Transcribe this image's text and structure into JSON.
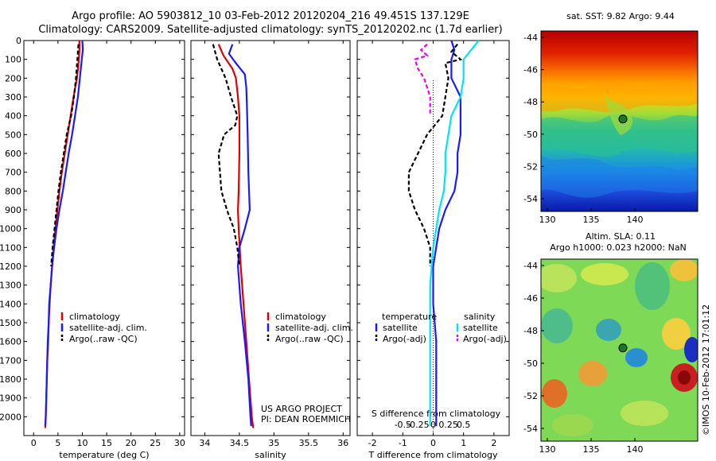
{
  "header": {
    "line1": "Argo profile: AO 5903812_10 03-Feb-2012 20120204_216 49.451S 137.129E",
    "line2": "Climatology: CARS2009. Satellite-adjusted climatology: synTS_20120202.nc (1.7d earlier)"
  },
  "colors": {
    "climatology": "#e00000",
    "satellite": "#1a1aff",
    "argo": "#000000",
    "sat_salinity": "#00e5ee",
    "argo_salinity": "#ee00ee",
    "map_marker": "#1b7a20"
  },
  "icons": {
    "map_marker": "circle-marker-icon"
  },
  "chart_data": [
    {
      "type": "line",
      "ylabel": "",
      "xlabel": "temperature (deg C)",
      "xlim": [
        -2,
        31
      ],
      "ylim": [
        2100,
        0
      ],
      "y_ticks": [
        0,
        100,
        200,
        300,
        400,
        500,
        600,
        700,
        800,
        900,
        1000,
        1100,
        1200,
        1300,
        1400,
        1500,
        1600,
        1700,
        1800,
        1900,
        2000
      ],
      "x_ticks": [
        0,
        5,
        10,
        15,
        20,
        25,
        30
      ],
      "legend": [
        "climatology",
        "satellite-adj. clim.",
        "Argo(..raw -QC)"
      ],
      "legend_position": "lower-center",
      "series": [
        {
          "name": "climatology",
          "color": "climatology",
          "dash": "",
          "points": [
            [
              9.4,
              0
            ],
            [
              9.4,
              50
            ],
            [
              9.3,
              100
            ],
            [
              8.9,
              200
            ],
            [
              8.2,
              300
            ],
            [
              7.6,
              400
            ],
            [
              7.0,
              500
            ],
            [
              6.4,
              600
            ],
            [
              5.8,
              700
            ],
            [
              5.3,
              800
            ],
            [
              4.9,
              900
            ],
            [
              4.5,
              1000
            ],
            [
              4.1,
              1100
            ],
            [
              3.8,
              1200
            ],
            [
              3.5,
              1300
            ],
            [
              3.3,
              1400
            ],
            [
              3.1,
              1500
            ],
            [
              3.0,
              1600
            ],
            [
              2.8,
              1700
            ],
            [
              2.7,
              1800
            ],
            [
              2.6,
              1900
            ],
            [
              2.5,
              2000
            ],
            [
              2.4,
              2060
            ]
          ]
        },
        {
          "name": "satellite-adj. clim.",
          "color": "satellite",
          "dash": "",
          "points": [
            [
              10.0,
              0
            ],
            [
              10.1,
              50
            ],
            [
              9.9,
              100
            ],
            [
              9.5,
              200
            ],
            [
              9.1,
              300
            ],
            [
              8.5,
              400
            ],
            [
              7.9,
              500
            ],
            [
              7.2,
              600
            ],
            [
              6.6,
              700
            ],
            [
              6.0,
              800
            ],
            [
              5.3,
              900
            ],
            [
              4.7,
              1000
            ],
            [
              4.2,
              1100
            ],
            [
              3.8,
              1200
            ],
            [
              3.5,
              1300
            ],
            [
              3.2,
              1400
            ],
            [
              3.1,
              1500
            ],
            [
              2.9,
              1600
            ],
            [
              2.8,
              1700
            ],
            [
              2.7,
              1800
            ],
            [
              2.6,
              1900
            ],
            [
              2.5,
              2000
            ],
            [
              2.4,
              2050
            ]
          ]
        },
        {
          "name": "Argo(..raw -QC)",
          "color": "argo",
          "dash": "5,3",
          "points": [
            [
              9.2,
              20
            ],
            [
              9.1,
              60
            ],
            [
              9.0,
              100
            ],
            [
              8.7,
              200
            ],
            [
              8.3,
              300
            ],
            [
              7.7,
              400
            ],
            [
              6.8,
              500
            ],
            [
              6.2,
              600
            ],
            [
              5.6,
              700
            ],
            [
              5.1,
              800
            ],
            [
              4.7,
              900
            ],
            [
              4.3,
              1000
            ],
            [
              3.9,
              1100
            ],
            [
              3.6,
              1200
            ]
          ]
        }
      ]
    },
    {
      "type": "line",
      "xlabel": "salinity",
      "xlim": [
        33.8,
        36.1
      ],
      "ylim": [
        2100,
        0
      ],
      "x_ticks": [
        34,
        34.5,
        35,
        35.5,
        36
      ],
      "x_tick_labels": [
        "34",
        "34.5",
        "35",
        "35.5",
        "36"
      ],
      "legend": [
        "climatology",
        "satellite-adj. clim.",
        "Argo(..raw -QC)"
      ],
      "legend_position": "lower-right",
      "annotation": [
        "US ARGO PROJECT",
        "PI: DEAN ROEMMICH"
      ],
      "series": [
        {
          "name": "climatology",
          "color": "climatology",
          "dash": "",
          "points": [
            [
              34.2,
              20
            ],
            [
              34.27,
              80
            ],
            [
              34.4,
              150
            ],
            [
              34.45,
              200
            ],
            [
              34.48,
              300
            ],
            [
              34.5,
              400
            ],
            [
              34.5,
              600
            ],
            [
              34.49,
              800
            ],
            [
              34.48,
              900
            ],
            [
              34.49,
              1000
            ],
            [
              34.52,
              1200
            ],
            [
              34.56,
              1400
            ],
            [
              34.6,
              1600
            ],
            [
              34.64,
              1800
            ],
            [
              34.68,
              2000
            ],
            [
              34.7,
              2060
            ]
          ]
        },
        {
          "name": "satellite-adj. clim.",
          "color": "satellite",
          "dash": "",
          "points": [
            [
              34.4,
              20
            ],
            [
              34.35,
              70
            ],
            [
              34.45,
              120
            ],
            [
              34.58,
              180
            ],
            [
              34.6,
              250
            ],
            [
              34.61,
              350
            ],
            [
              34.62,
              500
            ],
            [
              34.63,
              700
            ],
            [
              34.65,
              900
            ],
            [
              34.58,
              1000
            ],
            [
              34.5,
              1100
            ],
            [
              34.48,
              1200
            ],
            [
              34.52,
              1400
            ],
            [
              34.58,
              1600
            ],
            [
              34.63,
              1800
            ],
            [
              34.66,
              2000
            ],
            [
              34.67,
              2050
            ]
          ]
        },
        {
          "name": "Argo(..raw -QC)",
          "color": "argo",
          "dash": "5,3",
          "points": [
            [
              34.12,
              20
            ],
            [
              34.18,
              100
            ],
            [
              34.3,
              200
            ],
            [
              34.38,
              300
            ],
            [
              34.47,
              400
            ],
            [
              34.44,
              450
            ],
            [
              34.28,
              500
            ],
            [
              34.2,
              600
            ],
            [
              34.22,
              700
            ],
            [
              34.24,
              800
            ],
            [
              34.32,
              900
            ],
            [
              34.42,
              1000
            ],
            [
              34.47,
              1100
            ],
            [
              34.5,
              1200
            ]
          ]
        }
      ]
    },
    {
      "type": "line",
      "xlabel": "T difference from climatology",
      "top_axis_label": "S difference from climatology",
      "xlim": [
        -2.5,
        2.5
      ],
      "ylim": [
        2100,
        0
      ],
      "x_ticks": [
        -2,
        -1,
        0,
        1,
        2
      ],
      "x_tick_labels": [
        "-2",
        "-1",
        "0",
        "1",
        "2"
      ],
      "s_ticks": [
        -0.5,
        -0.25,
        0,
        0.25,
        0.5
      ],
      "s_tick_labels": [
        "-0.5",
        "-0.25",
        "0",
        "0.25",
        "0.5"
      ],
      "legend_temperature": [
        "temperature",
        "satellite",
        "Argo(-adj)"
      ],
      "legend_salinity": [
        "salinity",
        "satellite",
        "Argo(-adj)"
      ],
      "series": [
        {
          "name": "satellite",
          "color": "satellite",
          "dash": "",
          "points": [
            [
              0.6,
              0
            ],
            [
              0.7,
              50
            ],
            [
              0.6,
              100
            ],
            [
              0.6,
              200
            ],
            [
              0.9,
              300
            ],
            [
              0.9,
              400
            ],
            [
              0.9,
              500
            ],
            [
              0.8,
              600
            ],
            [
              0.8,
              700
            ],
            [
              0.7,
              800
            ],
            [
              0.4,
              900
            ],
            [
              0.2,
              1000
            ],
            [
              0.1,
              1100
            ],
            [
              0.0,
              1200
            ],
            [
              0.0,
              1400
            ],
            [
              0.1,
              1600
            ],
            [
              0.1,
              1800
            ],
            [
              0.1,
              2000
            ],
            [
              0.1,
              2050
            ]
          ]
        },
        {
          "name": "Argo(-adj)",
          "color": "argo",
          "dash": "5,3",
          "points": [
            [
              0.8,
              20
            ],
            [
              0.6,
              60
            ],
            [
              0.9,
              100
            ],
            [
              0.4,
              120
            ],
            [
              0.5,
              200
            ],
            [
              0.4,
              300
            ],
            [
              0.3,
              400
            ],
            [
              -0.2,
              500
            ],
            [
              -0.5,
              600
            ],
            [
              -0.8,
              700
            ],
            [
              -0.8,
              800
            ],
            [
              -0.6,
              900
            ],
            [
              -0.3,
              1000
            ],
            [
              -0.1,
              1100
            ],
            [
              -0.1,
              1200
            ]
          ]
        },
        {
          "name": "sat salinity",
          "color": "sat_salinity",
          "dash": "",
          "points": [
            [
              1.5,
              0
            ],
            [
              1.2,
              60
            ],
            [
              1.0,
              100
            ],
            [
              1.0,
              200
            ],
            [
              0.9,
              300
            ],
            [
              0.6,
              400
            ],
            [
              0.5,
              500
            ],
            [
              0.4,
              600
            ],
            [
              0.4,
              700
            ],
            [
              0.35,
              800
            ],
            [
              0.2,
              900
            ],
            [
              0.1,
              1000
            ],
            [
              0.0,
              1100
            ],
            [
              -0.1,
              1300
            ],
            [
              -0.1,
              1500
            ],
            [
              -0.1,
              1700
            ],
            [
              -0.1,
              1900
            ],
            [
              -0.1,
              2050
            ]
          ]
        },
        {
          "name": "argo salinity",
          "color": "argo_salinity",
          "dash": "5,3",
          "points": [
            [
              -0.2,
              20
            ],
            [
              -0.4,
              50
            ],
            [
              -0.2,
              80
            ],
            [
              -0.6,
              100
            ],
            [
              -0.5,
              150
            ],
            [
              -0.3,
              200
            ],
            [
              -0.1,
              300
            ],
            [
              -0.1,
              400
            ]
          ]
        }
      ]
    }
  ],
  "maps": {
    "sst": {
      "title": "sat. SST: 9.82  Argo: 9.44",
      "y_ticks": [
        "-44",
        "-46",
        "-48",
        "-50",
        "-52",
        "-54"
      ],
      "x_ticks": [
        "130",
        "135",
        "140"
      ]
    },
    "sla": {
      "title1": "Altim. SLA: 0.11",
      "title2": "Argo h1000: 0.023 h2000: NaN",
      "y_ticks": [
        "-44",
        "-46",
        "-48",
        "-50",
        "-52",
        "-54"
      ],
      "x_ticks": [
        "130",
        "135",
        "140"
      ]
    },
    "float_position": {
      "lon": 137.129,
      "lat": -49.451
    }
  },
  "footer": {
    "stamp": "©IMOS 10-Feb-2012 17:01:12"
  }
}
